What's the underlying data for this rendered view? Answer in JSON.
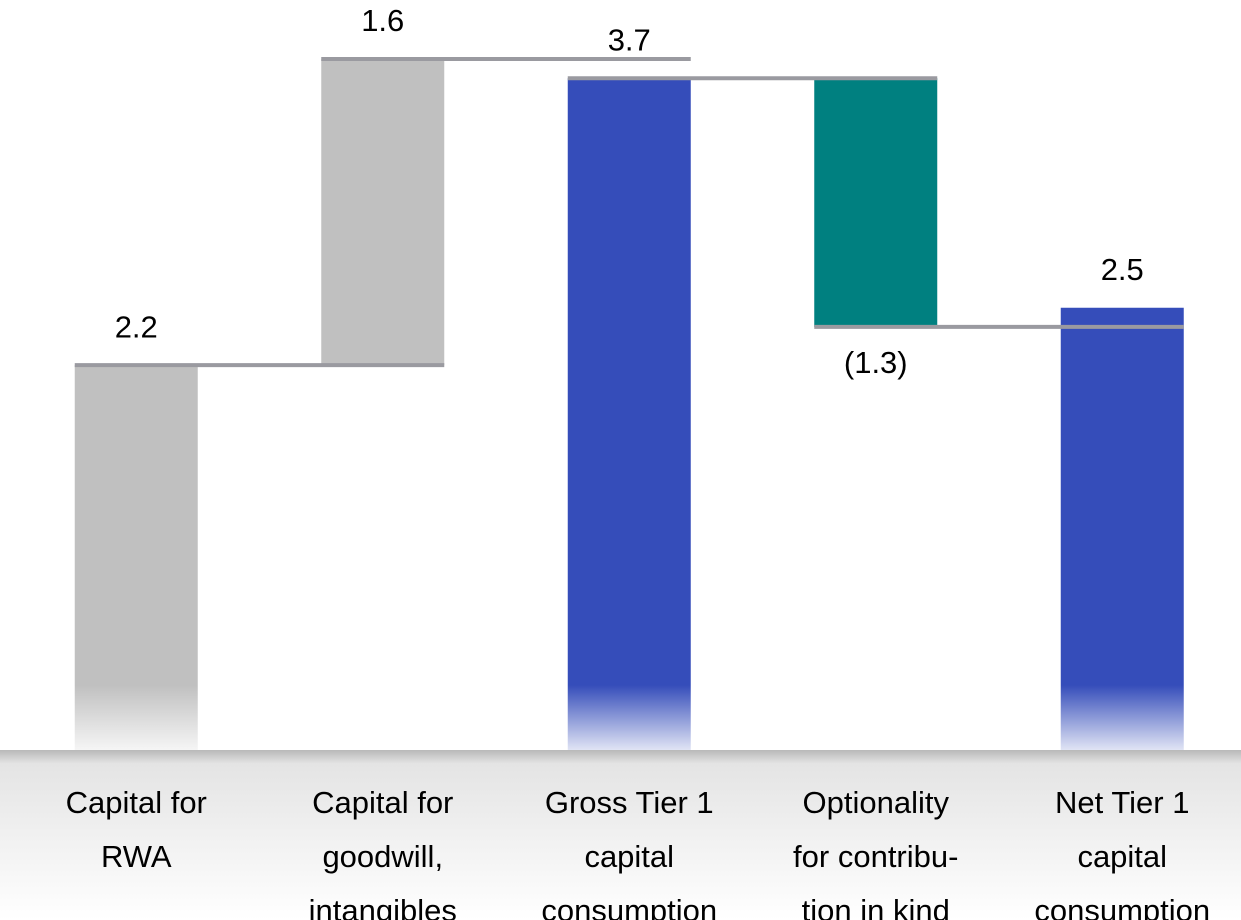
{
  "chart_data": {
    "type": "waterfall",
    "categories": [
      [
        "Capital for",
        "RWA"
      ],
      [
        "Capital for",
        "goodwill,",
        "intangibles"
      ],
      [
        "Gross Tier 1",
        "capital",
        "consumption"
      ],
      [
        "Optionality",
        "for contribu-",
        "tion in kind"
      ],
      [
        "Net Tier 1",
        "capital",
        "consumption"
      ]
    ],
    "values": [
      2.2,
      1.6,
      3.7,
      -1.3,
      2.5
    ],
    "value_labels": [
      "2.2",
      "1.6",
      "3.7",
      "(1.3)",
      "2.5"
    ],
    "is_total": [
      false,
      false,
      true,
      false,
      true
    ],
    "colors": [
      "#c0c0c0",
      "#c0c0c0",
      "#354dba",
      "#008080",
      "#354dba"
    ],
    "connector_color": "#9a9aa0"
  }
}
